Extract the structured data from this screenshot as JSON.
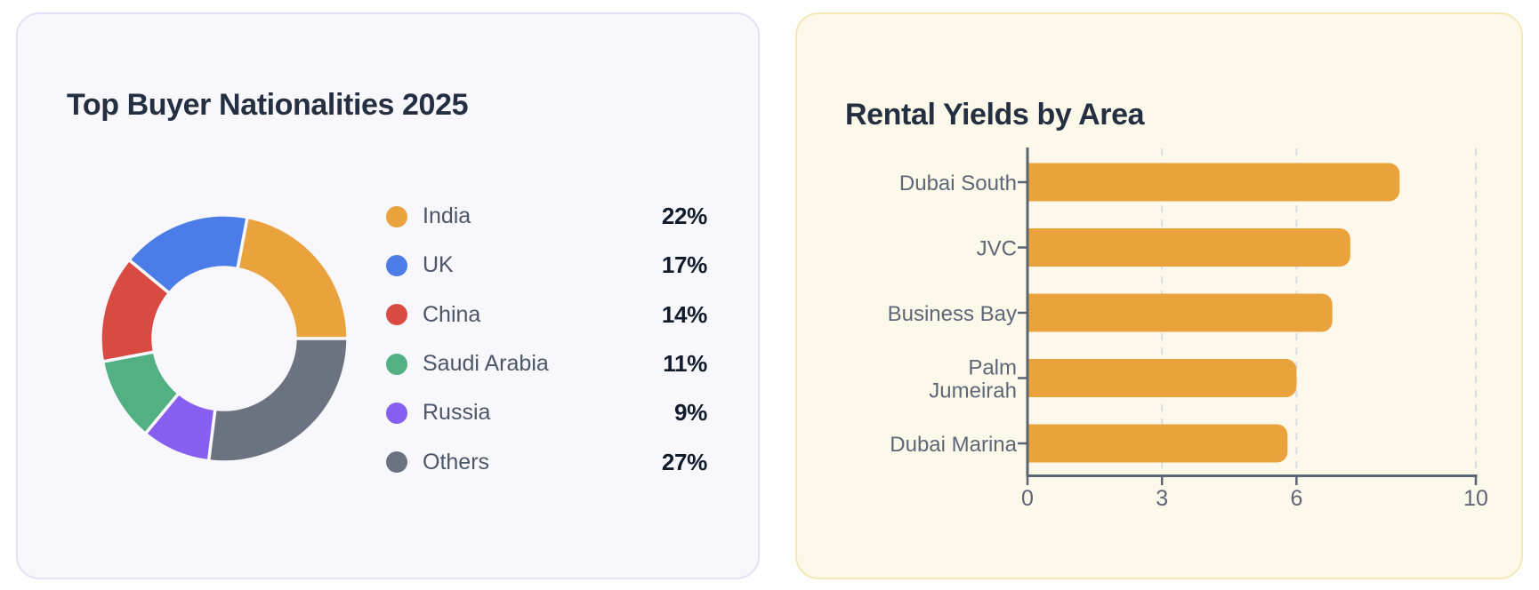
{
  "colors": {
    "page_bg": "#ffffff",
    "nationalities_card_bg": "#f8f7fc",
    "nationalities_card_border": "#e7dff6",
    "yields_card_bg": "#fdf9ea",
    "yields_card_border": "#f5e8b6",
    "title_text": "#243041",
    "legend_label_text": "#4b5668",
    "legend_value_text": "#101b2b",
    "axis_line": "#5a6474",
    "axis_text": "#5d6778",
    "gridline": "#d9dce3",
    "bar_fill": "#e9a23c"
  },
  "chart_data": [
    {
      "id": "top-buyer-nationalities",
      "type": "pie",
      "subtype": "donut",
      "title": "Top Buyer Nationalities 2025",
      "unit": "%",
      "legend_position": "right",
      "start_angle_deg": 0,
      "sweep": "counterclockwise",
      "categories": [
        "India",
        "UK",
        "China",
        "Saudi Arabia",
        "Russia",
        "Others"
      ],
      "values": [
        22,
        17,
        14,
        11,
        9,
        27
      ],
      "slice_colors": [
        "#e9a23c",
        "#4c7ce8",
        "#d94b42",
        "#51b182",
        "#875ff0",
        "#6b7280"
      ]
    },
    {
      "id": "rental-yields-by-area",
      "type": "bar",
      "orientation": "horizontal",
      "title": "Rental Yields by Area",
      "categories": [
        "Dubai South",
        "JVC",
        "Business Bay",
        "Palm Jumeirah",
        "Dubai Marina"
      ],
      "category_label_lines": [
        [
          "Dubai South"
        ],
        [
          "JVC"
        ],
        [
          "Business Bay"
        ],
        [
          "Palm",
          "Jumeirah"
        ],
        [
          "Dubai Marina"
        ]
      ],
      "values": [
        8.3,
        7.2,
        6.8,
        6.0,
        5.8
      ],
      "xlim": [
        0,
        10
      ],
      "x_ticks": [
        0,
        3,
        6,
        10
      ],
      "grid": {
        "vertical_dashed_at_ticks": true
      },
      "legend": "none"
    }
  ]
}
